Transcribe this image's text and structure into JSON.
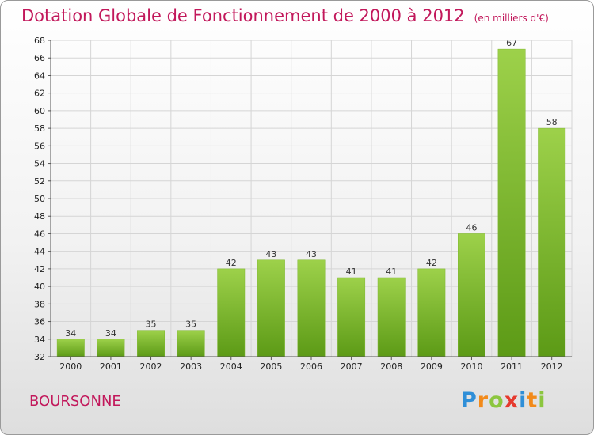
{
  "header": {
    "title": "Dotation Globale de Fonctionnement de 2000 à 2012",
    "unit": "(en milliers d'€)"
  },
  "footer": {
    "commune": "BOURSONNE",
    "logo_text": "Proxiti"
  },
  "colors": {
    "title": "#c2185b",
    "bar_top": "#9dd14a",
    "bar_bottom": "#5c9a16",
    "grid": "#d5d5d5"
  },
  "chart_data": {
    "type": "bar",
    "categories": [
      "2000",
      "2001",
      "2002",
      "2003",
      "2004",
      "2005",
      "2006",
      "2007",
      "2008",
      "2009",
      "2010",
      "2011",
      "2012"
    ],
    "values": [
      34,
      34,
      35,
      35,
      42,
      43,
      43,
      41,
      41,
      42,
      46,
      67,
      58
    ],
    "ylim": [
      32,
      68
    ],
    "ystep": 2,
    "grid": true,
    "data_labels": true
  }
}
